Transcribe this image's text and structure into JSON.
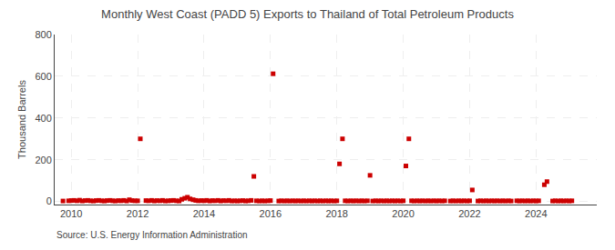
{
  "chart_data": {
    "type": "scatter",
    "title": "Monthly West Coast (PADD 5) Exports to Thailand of Total Petroleum Products",
    "ylabel": "Thousand Barrels",
    "annotations": [
      "Source: U.S. Energy Information Administration"
    ],
    "color": "#cc0000",
    "marker": "square",
    "grid": true,
    "xlim": [
      2009.5,
      2025.83
    ],
    "ylim": [
      -15,
      800
    ],
    "xticks": [
      2010,
      2012,
      2014,
      2016,
      2018,
      2020,
      2022,
      2024
    ],
    "yticks": [
      0,
      200,
      400,
      600,
      800
    ],
    "x": [
      2009.75,
      2009.92,
      2010.0,
      2010.08,
      2010.17,
      2010.25,
      2010.33,
      2010.42,
      2010.5,
      2010.58,
      2010.67,
      2010.75,
      2010.83,
      2010.92,
      2011.0,
      2011.08,
      2011.17,
      2011.25,
      2011.33,
      2011.42,
      2011.5,
      2011.58,
      2011.67,
      2011.75,
      2011.83,
      2011.92,
      2012.0,
      2012.08,
      2012.25,
      2012.33,
      2012.42,
      2012.5,
      2012.58,
      2012.67,
      2012.75,
      2012.83,
      2012.92,
      2013.0,
      2013.08,
      2013.17,
      2013.25,
      2013.33,
      2013.42,
      2013.5,
      2013.58,
      2013.67,
      2013.75,
      2013.83,
      2013.92,
      2014.0,
      2014.08,
      2014.17,
      2014.25,
      2014.33,
      2014.42,
      2014.5,
      2014.58,
      2014.67,
      2014.75,
      2014.83,
      2014.92,
      2015.0,
      2015.08,
      2015.17,
      2015.25,
      2015.33,
      2015.42,
      2015.5,
      2015.58,
      2015.67,
      2015.75,
      2015.83,
      2015.92,
      2016.0,
      2016.08,
      2016.25,
      2016.33,
      2016.42,
      2016.5,
      2016.58,
      2016.67,
      2016.75,
      2016.83,
      2016.92,
      2017.0,
      2017.08,
      2017.17,
      2017.25,
      2017.33,
      2017.42,
      2017.5,
      2017.58,
      2017.67,
      2017.75,
      2017.83,
      2017.92,
      2018.0,
      2018.08,
      2018.17,
      2018.25,
      2018.33,
      2018.42,
      2018.5,
      2018.58,
      2018.67,
      2018.75,
      2018.83,
      2018.92,
      2019.0,
      2019.08,
      2019.17,
      2019.25,
      2019.33,
      2019.42,
      2019.5,
      2019.58,
      2019.67,
      2019.75,
      2019.83,
      2019.92,
      2020.0,
      2020.08,
      2020.17,
      2020.25,
      2020.33,
      2020.42,
      2020.5,
      2020.58,
      2020.67,
      2020.75,
      2020.83,
      2020.92,
      2021.0,
      2021.08,
      2021.17,
      2021.25,
      2021.42,
      2021.5,
      2021.58,
      2021.67,
      2021.75,
      2021.83,
      2021.92,
      2022.0,
      2022.08,
      2022.25,
      2022.33,
      2022.42,
      2022.5,
      2022.58,
      2022.67,
      2022.75,
      2022.83,
      2022.92,
      2023.0,
      2023.08,
      2023.17,
      2023.25,
      2023.42,
      2023.5,
      2023.58,
      2023.67,
      2023.75,
      2023.83,
      2023.92,
      2024.0,
      2024.08,
      2024.25,
      2024.33,
      2024.5,
      2024.58,
      2024.67,
      2024.75,
      2024.83,
      2024.92,
      2025.0,
      2025.08
    ],
    "values": [
      2,
      3,
      4,
      5,
      3,
      6,
      2,
      4,
      5,
      3,
      2,
      4,
      5,
      3,
      2,
      4,
      5,
      3,
      2,
      4,
      3,
      5,
      2,
      8,
      4,
      3,
      3,
      300,
      4,
      3,
      5,
      2,
      4,
      3,
      5,
      2,
      3,
      4,
      5,
      3,
      2,
      10,
      15,
      20,
      12,
      8,
      5,
      3,
      4,
      3,
      5,
      2,
      4,
      3,
      5,
      2,
      4,
      3,
      5,
      2,
      3,
      2,
      3,
      4,
      2,
      3,
      5,
      120,
      3,
      2,
      3,
      2,
      3,
      4,
      612,
      2,
      3,
      2,
      3,
      2,
      3,
      2,
      3,
      2,
      3,
      2,
      3,
      2,
      3,
      2,
      3,
      2,
      3,
      2,
      3,
      2,
      3,
      180,
      300,
      3,
      2,
      3,
      2,
      3,
      2,
      3,
      2,
      3,
      125,
      2,
      3,
      2,
      3,
      2,
      3,
      2,
      3,
      2,
      3,
      2,
      3,
      170,
      300,
      3,
      2,
      3,
      2,
      3,
      2,
      3,
      2,
      3,
      2,
      3,
      2,
      3,
      2,
      3,
      2,
      3,
      2,
      3,
      2,
      3,
      55,
      2,
      3,
      2,
      3,
      2,
      3,
      2,
      3,
      2,
      3,
      2,
      3,
      2,
      3,
      2,
      3,
      2,
      3,
      2,
      3,
      2,
      3,
      80,
      95,
      2,
      3,
      2,
      3,
      2,
      3,
      2,
      3
    ]
  }
}
